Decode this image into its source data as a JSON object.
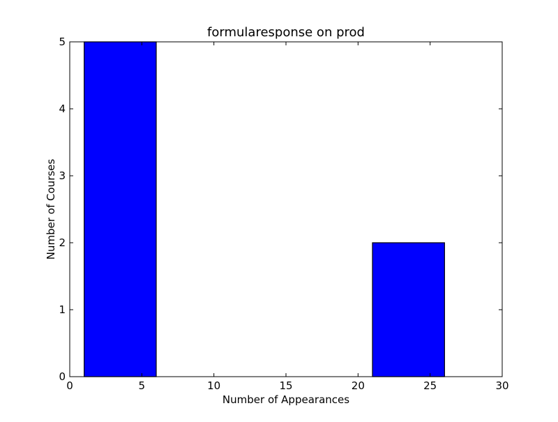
{
  "chart_data": {
    "type": "bar",
    "title": "formularesponse on prod",
    "xlabel": "Number of Appearances",
    "ylabel": "Number of Courses",
    "xlim": [
      0,
      30
    ],
    "ylim": [
      0,
      5
    ],
    "xticks": [
      "0",
      "5",
      "10",
      "15",
      "20",
      "25",
      "30"
    ],
    "yticks": [
      "0",
      "1",
      "2",
      "3",
      "4",
      "5"
    ],
    "grid": false,
    "bar_color": "#0000ff",
    "bar_edge_color": "#000000",
    "bins": [
      {
        "x_start": 1,
        "x_end": 6,
        "value": 5
      },
      {
        "x_start": 6,
        "x_end": 11,
        "value": 0
      },
      {
        "x_start": 11,
        "x_end": 16,
        "value": 0
      },
      {
        "x_start": 16,
        "x_end": 21,
        "value": 0
      },
      {
        "x_start": 21,
        "x_end": 26,
        "value": 2
      }
    ]
  }
}
